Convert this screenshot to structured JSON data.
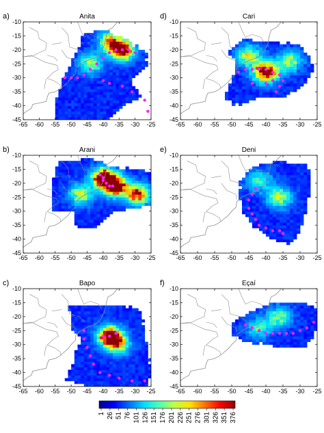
{
  "chart_data": [
    {
      "type": "heatmap",
      "panel_label": "a)",
      "title": "Anita",
      "xlim": [
        -65,
        -25
      ],
      "ylim": [
        -45,
        -10
      ],
      "x_ticks": [
        -65,
        -60,
        -55,
        -50,
        -45,
        -40,
        -35,
        -30,
        -25
      ],
      "y_ticks": [
        -10,
        -15,
        -20,
        -25,
        -30,
        -35,
        -40,
        -45
      ],
      "grid": false,
      "coverage": [
        [
          -55,
          -38
        ],
        [
          -52,
          -29
        ],
        [
          -49,
          -22
        ],
        [
          -46,
          -14
        ],
        [
          -40,
          -13
        ],
        [
          -33,
          -16
        ],
        [
          -26,
          -22
        ],
        [
          -27,
          -27
        ],
        [
          -32,
          -31
        ],
        [
          -28,
          -37
        ],
        [
          -34,
          -40
        ],
        [
          -38,
          -45
        ],
        [
          -55,
          -45
        ]
      ],
      "hotspots": [
        {
          "x": -34,
          "y": -20,
          "level": 0.95
        },
        {
          "x": -38,
          "y": -17,
          "level": 0.6
        },
        {
          "x": -44,
          "y": -25,
          "level": 0.5
        }
      ],
      "track": [
        [
          -52,
          -30
        ],
        [
          -50,
          -30
        ],
        [
          -48,
          -30
        ],
        [
          -46,
          -29
        ],
        [
          -44,
          -27
        ],
        [
          -42,
          -25
        ],
        [
          -40,
          -23
        ],
        [
          -38,
          -21
        ],
        [
          -36,
          -20
        ],
        [
          -34,
          -20
        ],
        [
          -32,
          -20
        ],
        [
          -30,
          -21
        ],
        [
          -40,
          -31
        ],
        [
          -38,
          -32
        ],
        [
          -34,
          -33
        ],
        [
          -31,
          -35
        ],
        [
          -27,
          -38
        ],
        [
          -26,
          -42
        ]
      ]
    },
    {
      "type": "heatmap",
      "panel_label": "d)",
      "title": "Cari",
      "xlim": [
        -65,
        -25
      ],
      "ylim": [
        -45,
        -10
      ],
      "x_ticks": [
        -65,
        -60,
        -55,
        -50,
        -45,
        -40,
        -35,
        -30,
        -25
      ],
      "y_ticks": [
        -10,
        -15,
        -20,
        -25,
        -30,
        -35,
        -40,
        -45
      ],
      "grid": false,
      "coverage": [
        [
          -51,
          -20
        ],
        [
          -46,
          -16
        ],
        [
          -38,
          -17
        ],
        [
          -30,
          -18
        ],
        [
          -27,
          -22
        ],
        [
          -26,
          -28
        ],
        [
          -30,
          -34
        ],
        [
          -35,
          -37
        ],
        [
          -42,
          -37
        ],
        [
          -48,
          -40
        ],
        [
          -52,
          -38
        ],
        [
          -50,
          -31
        ],
        [
          -49,
          -25
        ]
      ],
      "hotspots": [
        {
          "x": -40,
          "y": -28,
          "level": 0.95
        },
        {
          "x": -45,
          "y": -22,
          "level": 0.55
        },
        {
          "x": -33,
          "y": -24,
          "level": 0.5
        }
      ],
      "track": [
        [
          -48,
          -28
        ],
        [
          -46,
          -27
        ],
        [
          -44,
          -27
        ],
        [
          -42,
          -27
        ],
        [
          -40,
          -27
        ],
        [
          -38,
          -28
        ],
        [
          -36,
          -29
        ],
        [
          -35,
          -31
        ],
        [
          -36,
          -33
        ],
        [
          -37,
          -35
        ],
        [
          -38,
          -31
        ],
        [
          -40,
          -32
        ],
        [
          -44,
          -32
        ]
      ]
    },
    {
      "type": "heatmap",
      "panel_label": "b)",
      "title": "Arani",
      "xlim": [
        -65,
        -25
      ],
      "ylim": [
        -45,
        -10
      ],
      "x_ticks": [
        -65,
        -60,
        -55,
        -50,
        -45,
        -40,
        -35,
        -30,
        -25
      ],
      "y_ticks": [
        -10,
        -15,
        -20,
        -25,
        -30,
        -35,
        -40,
        -45
      ],
      "grid": false,
      "coverage": [
        [
          -56,
          -20
        ],
        [
          -54,
          -12
        ],
        [
          -44,
          -11
        ],
        [
          -38,
          -14
        ],
        [
          -30,
          -15
        ],
        [
          -25,
          -16
        ],
        [
          -25,
          -28
        ],
        [
          -32,
          -29
        ],
        [
          -38,
          -31
        ],
        [
          -42,
          -36
        ],
        [
          -48,
          -36
        ],
        [
          -50,
          -30
        ],
        [
          -56,
          -30
        ]
      ],
      "hotspots": [
        {
          "x": -36,
          "y": -21,
          "level": 1.0
        },
        {
          "x": -40,
          "y": -18,
          "level": 0.95
        },
        {
          "x": -29,
          "y": -24,
          "level": 0.85
        },
        {
          "x": -47,
          "y": -24,
          "level": 0.55
        }
      ],
      "track": [
        [
          -41,
          -17
        ],
        [
          -40,
          -18
        ],
        [
          -40,
          -19
        ],
        [
          -39,
          -20
        ],
        [
          -38,
          -21
        ],
        [
          -37,
          -21
        ]
      ]
    },
    {
      "type": "heatmap",
      "panel_label": "e)",
      "title": "Deni",
      "xlim": [
        -65,
        -25
      ],
      "ylim": [
        -45,
        -10
      ],
      "x_ticks": [
        -65,
        -60,
        -55,
        -50,
        -45,
        -40,
        -35,
        -30,
        -25
      ],
      "y_ticks": [
        -10,
        -15,
        -20,
        -25,
        -30,
        -35,
        -40,
        -45
      ],
      "grid": false,
      "coverage": [
        [
          -48,
          -20
        ],
        [
          -44,
          -14
        ],
        [
          -36,
          -12
        ],
        [
          -28,
          -13
        ],
        [
          -27,
          -20
        ],
        [
          -28,
          -30
        ],
        [
          -30,
          -37
        ],
        [
          -33,
          -42
        ],
        [
          -38,
          -40
        ],
        [
          -44,
          -35
        ],
        [
          -47,
          -30
        ]
      ],
      "hotspots": [
        {
          "x": -36,
          "y": -25,
          "level": 0.55
        },
        {
          "x": -42,
          "y": -19,
          "level": 0.4
        }
      ],
      "track": [
        [
          -43,
          -22
        ],
        [
          -44,
          -24
        ],
        [
          -45,
          -26
        ],
        [
          -45,
          -29
        ],
        [
          -44,
          -31
        ],
        [
          -43,
          -33
        ],
        [
          -42,
          -35
        ],
        [
          -40,
          -36
        ],
        [
          -38,
          -37
        ],
        [
          -36,
          -37
        ],
        [
          -35,
          -38
        ]
      ]
    },
    {
      "type": "heatmap",
      "panel_label": "c)",
      "title": "Bapo",
      "xlim": [
        -65,
        -25
      ],
      "ylim": [
        -45,
        -10
      ],
      "x_ticks": [
        -65,
        -60,
        -55,
        -50,
        -45,
        -40,
        -35,
        -30,
        -25
      ],
      "y_ticks": [
        -10,
        -15,
        -20,
        -25,
        -30,
        -35,
        -40,
        -45
      ],
      "grid": false,
      "coverage": [
        [
          -50,
          -23
        ],
        [
          -51,
          -16
        ],
        [
          -36,
          -16
        ],
        [
          -29,
          -17
        ],
        [
          -27,
          -25
        ],
        [
          -26,
          -33
        ],
        [
          -25,
          -40
        ],
        [
          -26,
          -45
        ],
        [
          -36,
          -45
        ],
        [
          -45,
          -45
        ],
        [
          -52,
          -43
        ],
        [
          -49,
          -35
        ],
        [
          -47,
          -28
        ]
      ],
      "hotspots": [
        {
          "x": -38,
          "y": -27,
          "level": 1.0
        },
        {
          "x": -35,
          "y": -30,
          "level": 0.5
        }
      ],
      "track": [
        [
          -46,
          -25
        ],
        [
          -46,
          -28
        ],
        [
          -45,
          -31
        ],
        [
          -44,
          -34
        ],
        [
          -43,
          -37
        ],
        [
          -41,
          -40
        ],
        [
          -38,
          -41
        ],
        [
          -35,
          -42
        ],
        [
          -31,
          -43
        ],
        [
          -27,
          -43
        ],
        [
          -40,
          -27
        ],
        [
          -38,
          -27
        ],
        [
          -36,
          -26
        ]
      ]
    },
    {
      "type": "heatmap",
      "panel_label": "f)",
      "title": "Eçaí",
      "xlim": [
        -65,
        -25
      ],
      "ylim": [
        -45,
        -10
      ],
      "x_ticks": [
        -65,
        -60,
        -55,
        -50,
        -45,
        -40,
        -35,
        -30,
        -25
      ],
      "y_ticks": [
        -10,
        -15,
        -20,
        -25,
        -30,
        -35,
        -40,
        -45
      ],
      "grid": false,
      "coverage": [
        [
          -50,
          -22
        ],
        [
          -44,
          -18
        ],
        [
          -38,
          -15
        ],
        [
          -30,
          -15
        ],
        [
          -24,
          -17
        ],
        [
          -25,
          -24
        ],
        [
          -28,
          -31
        ],
        [
          -34,
          -31
        ],
        [
          -40,
          -30
        ],
        [
          -46,
          -29
        ],
        [
          -50,
          -26
        ]
      ],
      "hotspots": [
        {
          "x": -36,
          "y": -20,
          "level": 0.45
        },
        {
          "x": -42,
          "y": -24,
          "level": 0.4
        }
      ],
      "track": [
        [
          -46,
          -23
        ],
        [
          -44,
          -24
        ],
        [
          -42,
          -25
        ],
        [
          -40,
          -26
        ],
        [
          -38,
          -26
        ],
        [
          -36,
          -26
        ],
        [
          -34,
          -26
        ],
        [
          -32,
          -26
        ],
        [
          -30,
          -25
        ],
        [
          -28,
          -24
        ],
        [
          -26,
          -22
        ]
      ]
    }
  ],
  "colorbar": {
    "ticks": [
      "1",
      "26",
      "51",
      "76",
      "101",
      "126",
      "151",
      "176",
      "201",
      "226",
      "251",
      "276",
      "301",
      "326",
      "351",
      "376"
    ],
    "colors": [
      "#00008f",
      "#0000ff",
      "#0070ff",
      "#00dfff",
      "#50ffaf",
      "#bfff40",
      "#ffe000",
      "#ff7000",
      "#ff0000",
      "#8f0000"
    ]
  },
  "colors": {
    "track": "#ff1fff",
    "coast": "#8c8c8c",
    "axes": "#000000"
  }
}
